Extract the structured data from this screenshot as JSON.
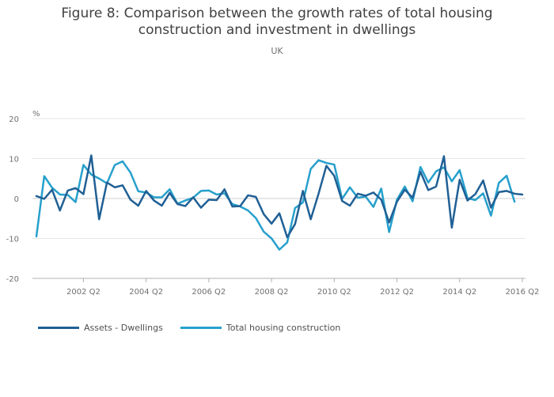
{
  "chart_data": {
    "type": "line",
    "title_line1": "Figure 8: Comparison between the growth rates of total housing",
    "title_line2": "construction and investment in dwellings",
    "subtitle": "UK",
    "ylabel": "%",
    "ylim": [
      -20,
      20
    ],
    "yticks": [
      20,
      10,
      0,
      -10,
      -20
    ],
    "xticks": [
      "2002 Q2",
      "2004 Q2",
      "2006 Q2",
      "2008 Q2",
      "2010 Q2",
      "2012 Q2",
      "2014 Q2",
      "2016 Q2"
    ],
    "x": [
      "2000 Q4",
      "2001 Q1",
      "2001 Q2",
      "2001 Q3",
      "2001 Q4",
      "2002 Q1",
      "2002 Q2",
      "2002 Q3",
      "2002 Q4",
      "2003 Q1",
      "2003 Q2",
      "2003 Q3",
      "2003 Q4",
      "2004 Q1",
      "2004 Q2",
      "2004 Q3",
      "2004 Q4",
      "2005 Q1",
      "2005 Q2",
      "2005 Q3",
      "2005 Q4",
      "2006 Q1",
      "2006 Q2",
      "2006 Q3",
      "2006 Q4",
      "2007 Q1",
      "2007 Q2",
      "2007 Q3",
      "2007 Q4",
      "2008 Q1",
      "2008 Q2",
      "2008 Q3",
      "2008 Q4",
      "2009 Q1",
      "2009 Q2",
      "2009 Q3",
      "2009 Q4",
      "2010 Q1",
      "2010 Q2",
      "2010 Q3",
      "2010 Q4",
      "2011 Q1",
      "2011 Q2",
      "2011 Q3",
      "2011 Q4",
      "2012 Q1",
      "2012 Q2",
      "2012 Q3",
      "2012 Q4",
      "2013 Q1",
      "2013 Q2",
      "2013 Q3",
      "2013 Q4",
      "2014 Q1",
      "2014 Q2",
      "2014 Q3",
      "2014 Q4",
      "2015 Q1",
      "2015 Q2",
      "2015 Q3",
      "2015 Q4",
      "2016 Q1",
      "2016 Q2"
    ],
    "series": [
      {
        "name": "Assets - Dwellings",
        "color": "#206095",
        "values": [
          0.6,
          -0.1,
          2.2,
          -3.0,
          2.0,
          2.6,
          1.1,
          10.8,
          -5.2,
          4.0,
          2.8,
          3.3,
          -0.3,
          -1.8,
          1.9,
          -0.5,
          -1.8,
          1.4,
          -1.4,
          -1.9,
          0.3,
          -2.3,
          -0.3,
          -0.4,
          2.3,
          -2.0,
          -1.9,
          0.8,
          0.4,
          -3.9,
          -6.3,
          -3.7,
          -9.7,
          -6.4,
          1.9,
          -5.2,
          1.2,
          8.2,
          5.7,
          -0.6,
          -1.8,
          1.2,
          0.7,
          1.5,
          -0.3,
          -6.0,
          -0.8,
          2.2,
          0.2,
          6.7,
          2.1,
          3.0,
          10.6,
          -7.3,
          4.7,
          -0.5,
          1.1,
          4.5,
          -2.3,
          1.6,
          1.9,
          1.2,
          1.0
        ]
      },
      {
        "name": "Total housing construction",
        "color": "#27a0cc",
        "values": [
          -9.5,
          5.6,
          2.7,
          1.0,
          0.9,
          -0.9,
          8.4,
          6.0,
          5.0,
          3.8,
          8.4,
          9.3,
          6.5,
          1.8,
          1.5,
          0.3,
          0.3,
          2.3,
          -1.3,
          -0.5,
          0.2,
          1.9,
          2.0,
          1.0,
          1.3,
          -1.4,
          -2.0,
          -3.0,
          -4.9,
          -8.3,
          -10.0,
          -12.8,
          -11.0,
          -2.4,
          -1.0,
          7.4,
          9.6,
          8.9,
          8.5,
          -0.1,
          2.8,
          0.2,
          0.5,
          -2.1,
          2.5,
          -8.4,
          -0.3,
          3.0,
          -0.7,
          7.9,
          4.0,
          6.8,
          7.8,
          4.3,
          7.1,
          0.1,
          -0.4,
          1.3,
          -4.3,
          3.9,
          5.7,
          -0.8,
          null
        ]
      }
    ],
    "grid": true,
    "legend_position": "bottom-left"
  }
}
